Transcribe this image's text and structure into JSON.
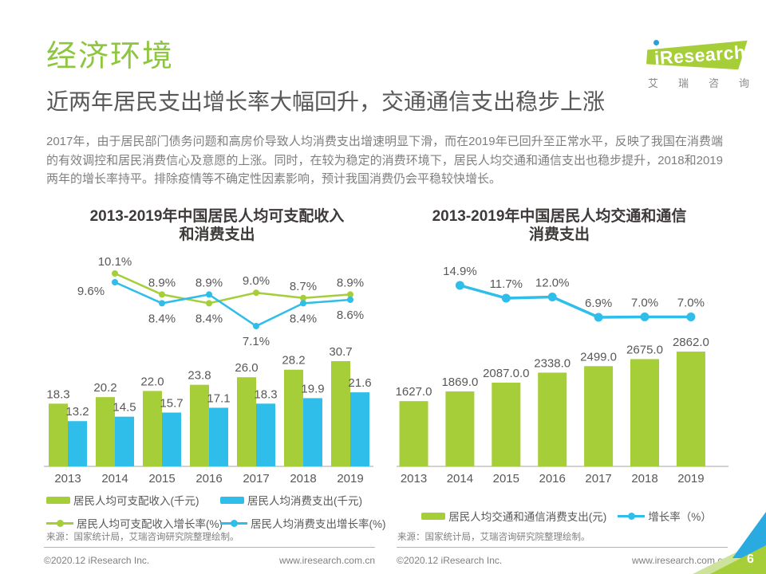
{
  "page": {
    "section_title": "经济环境",
    "headline": "近两年居民支出增长率大幅回升，交通通信支出稳步上涨",
    "paragraph": "2017年，由于居民部门债务问题和高房价导致人均消费支出增速明显下滑，而在2019年已回升至正常水平，反映了我国在消费端的有效调控和居民消费信心及意愿的上涨。同时，在较为稳定的消费环境下，居民人均交通和通信支出也稳步提升，2018和2019两年的增长率持平。排除疫情等不确定性因素影响，预计我国消费仍会平稳较快增长。",
    "page_number": "6"
  },
  "logo": {
    "brand": "iResearch",
    "brand_rest": "Research",
    "tagline": "艾瑞咨询"
  },
  "colors": {
    "green": "#a5ce38",
    "blue": "#2fbde9",
    "title_green": "#8dc63f",
    "heading_gray": "#595757",
    "body_gray": "#7f7f7f"
  },
  "chart_data": [
    {
      "type": "bar+line",
      "title": "2013-2019年中国居民人均可支配收入和消费支出",
      "title_lines": [
        "2013-2019年中国居民人均可支配收入",
        "和消费支出"
      ],
      "categories": [
        "2013",
        "2014",
        "2015",
        "2016",
        "2017",
        "2018",
        "2019"
      ],
      "bar_series": [
        {
          "name": "居民人均可支配收入(千元)",
          "color": "#a5ce38",
          "values": [
            18.3,
            20.2,
            22.0,
            23.8,
            26.0,
            28.2,
            30.7
          ],
          "labels": [
            "18.3",
            "20.2",
            "22.0",
            "23.8",
            "26.0",
            "28.2",
            "30.7"
          ]
        },
        {
          "name": "居民人均消费支出(千元)",
          "color": "#2fbde9",
          "values": [
            13.2,
            14.5,
            15.7,
            17.1,
            18.3,
            19.9,
            21.6
          ],
          "labels": [
            "13.2",
            "14.5",
            "15.7",
            "17.1",
            "18.3",
            "19.9",
            "21.6"
          ]
        }
      ],
      "line_series": [
        {
          "name": "居民人均可支配收入增长率(%)",
          "color": "#a5ce38",
          "start_index": 1,
          "values": [
            10.1,
            8.9,
            8.4,
            9.0,
            8.7,
            8.9
          ],
          "labels": [
            "10.1%",
            "8.9%",
            "8.4%",
            "9.0%",
            "8.7%",
            "8.9%"
          ],
          "label_placement": [
            "above",
            "above",
            "below",
            "above",
            "above",
            "above"
          ]
        },
        {
          "name": "居民人均消费支出增长率(%)",
          "color": "#2fbde9",
          "start_index": 1,
          "values": [
            9.6,
            8.4,
            8.9,
            7.1,
            8.4,
            8.6
          ],
          "labels": [
            "9.6%",
            "8.4%",
            "8.9%",
            "7.1%",
            "8.4%",
            "8.6%"
          ],
          "label_placement": [
            "below-left",
            "below",
            "above",
            "below",
            "below",
            "below"
          ]
        }
      ],
      "source": "来源：国家统计局，艾瑞咨询研究院整理绘制。"
    },
    {
      "type": "bar+line",
      "title": "2013-2019年中国居民人均交通和通信消费支出",
      "title_lines": [
        "2013-2019年中国居民人均交通和通信",
        "消费支出"
      ],
      "categories": [
        "2013",
        "2014",
        "2015",
        "2016",
        "2017",
        "2018",
        "2019"
      ],
      "bar_series": [
        {
          "name": "居民人均交通和通信消费支出(元)",
          "color": "#a5ce38",
          "values": [
            1627,
            1869,
            2087,
            2338,
            2499,
            2675,
            2862
          ],
          "labels": [
            "1627.0",
            "1869.0",
            "2087.0.0",
            "2338.0",
            "2499.0",
            "2675.0",
            "2862.0"
          ]
        }
      ],
      "line_series": [
        {
          "name": "增长率（%）",
          "color": "#2fbde9",
          "start_index": 1,
          "values": [
            14.9,
            11.7,
            12.0,
            6.9,
            7.0,
            7.0
          ],
          "labels": [
            "14.9%",
            "11.7%",
            "12.0%",
            "6.9%",
            "7.0%",
            "7.0%"
          ],
          "label_placement": [
            "above",
            "above",
            "above",
            "above",
            "above",
            "above"
          ]
        }
      ],
      "source": "来源：国家统计局，艾瑞咨询研究院整理绘制。"
    }
  ],
  "footer": {
    "columns": [
      {
        "copyright": "©2020.12 iResearch Inc.",
        "url": "www.iresearch.com.cn"
      },
      {
        "copyright": "©2020.12 iResearch Inc.",
        "url": "www.iresearch.com.cn"
      }
    ]
  }
}
